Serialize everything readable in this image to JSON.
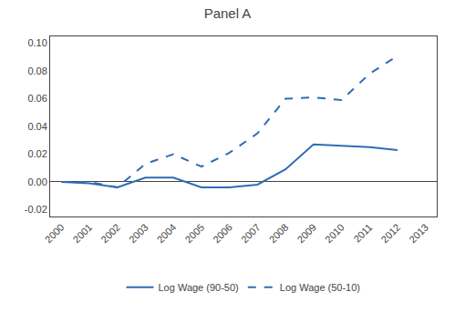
{
  "chart_data": {
    "type": "line",
    "title": "Panel A",
    "x": [
      2000,
      2001,
      2002,
      2003,
      2004,
      2005,
      2006,
      2007,
      2008,
      2009,
      2010,
      2011,
      2012,
      2013
    ],
    "series": [
      {
        "name": "Log Wage (90-50)",
        "color": "#2E6DB4",
        "line_style": "solid",
        "values": [
          0.0,
          -0.001,
          -0.004,
          0.003,
          0.003,
          -0.004,
          -0.004,
          -0.002,
          0.009,
          0.027,
          0.026,
          0.025,
          0.023,
          null
        ]
      },
      {
        "name": "Log Wage (50-10)",
        "color": "#2E6DB4",
        "line_style": "dashed",
        "values": [
          0.0,
          0.0,
          -0.004,
          0.013,
          0.02,
          0.011,
          0.021,
          0.035,
          0.06,
          0.061,
          0.059,
          0.078,
          0.091,
          null
        ]
      }
    ],
    "xlim": [
      1999.6,
      2013.4
    ],
    "xticks": [
      2000,
      2001,
      2002,
      2003,
      2004,
      2005,
      2006,
      2007,
      2008,
      2009,
      2010,
      2011,
      2012,
      2013
    ],
    "ylim": [
      -0.025,
      0.105
    ],
    "yticks": [
      -0.02,
      {
        "value": 0,
        "label": "0.00"
      },
      0.02,
      0.04,
      0.06,
      0.08,
      {
        "value": 0.1,
        "label": "0.10"
      }
    ],
    "grid": false,
    "legend": "bottom"
  }
}
